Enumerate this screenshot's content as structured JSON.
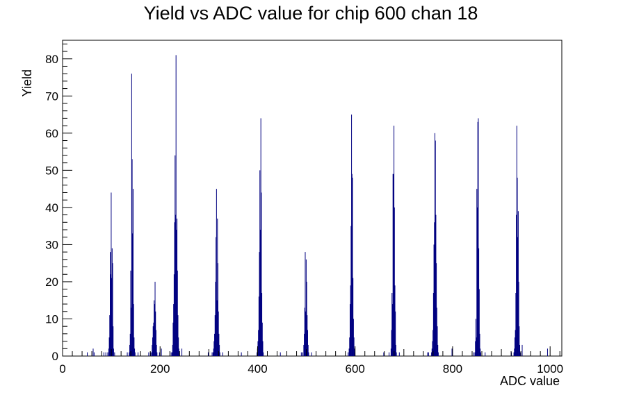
{
  "chart_data": {
    "type": "histogram",
    "title": "Yield vs ADC value for chip 600 chan 18",
    "xlabel": "ADC value",
    "ylabel": "Yield",
    "xlim": [
      0,
      1024
    ],
    "ylim": [
      0,
      85
    ],
    "x_ticks": [
      0,
      200,
      400,
      600,
      800,
      1000
    ],
    "y_ticks": [
      0,
      10,
      20,
      30,
      40,
      50,
      60,
      70,
      80
    ],
    "grid": false,
    "legend": "none",
    "line_color": "#000080",
    "bins": [
      [
        50,
        1
      ],
      [
        62,
        2
      ],
      [
        64,
        1
      ],
      [
        84,
        1
      ],
      [
        88,
        1
      ],
      [
        92,
        1
      ],
      [
        94,
        2
      ],
      [
        95,
        5
      ],
      [
        96,
        11
      ],
      [
        97,
        28
      ],
      [
        98,
        22
      ],
      [
        99,
        44
      ],
      [
        100,
        21
      ],
      [
        101,
        29
      ],
      [
        102,
        25
      ],
      [
        103,
        8
      ],
      [
        104,
        2
      ],
      [
        106,
        1
      ],
      [
        132,
        1
      ],
      [
        136,
        1
      ],
      [
        137,
        3
      ],
      [
        138,
        6
      ],
      [
        139,
        23
      ],
      [
        140,
        13
      ],
      [
        141,
        76
      ],
      [
        142,
        53
      ],
      [
        143,
        33
      ],
      [
        144,
        45
      ],
      [
        145,
        14
      ],
      [
        146,
        5
      ],
      [
        147,
        2
      ],
      [
        148,
        1
      ],
      [
        154,
        1
      ],
      [
        176,
        1
      ],
      [
        180,
        1
      ],
      [
        182,
        1
      ],
      [
        183,
        3
      ],
      [
        184,
        5
      ],
      [
        185,
        8
      ],
      [
        186,
        9
      ],
      [
        187,
        15
      ],
      [
        188,
        14
      ],
      [
        189,
        20
      ],
      [
        190,
        12
      ],
      [
        191,
        7
      ],
      [
        192,
        3
      ],
      [
        193,
        1
      ],
      [
        198,
        1
      ],
      [
        202,
        2
      ],
      [
        222,
        1
      ],
      [
        224,
        1
      ],
      [
        225,
        3
      ],
      [
        226,
        9
      ],
      [
        227,
        14
      ],
      [
        228,
        22
      ],
      [
        229,
        36
      ],
      [
        230,
        54
      ],
      [
        231,
        38
      ],
      [
        232,
        81
      ],
      [
        233,
        34
      ],
      [
        234,
        37
      ],
      [
        235,
        23
      ],
      [
        236,
        11
      ],
      [
        237,
        5
      ],
      [
        238,
        2
      ],
      [
        239,
        1
      ],
      [
        244,
        2
      ],
      [
        298,
        1
      ],
      [
        306,
        1
      ],
      [
        308,
        1
      ],
      [
        309,
        2
      ],
      [
        310,
        4
      ],
      [
        311,
        6
      ],
      [
        312,
        11
      ],
      [
        313,
        20
      ],
      [
        314,
        32
      ],
      [
        315,
        45
      ],
      [
        316,
        15
      ],
      [
        317,
        37
      ],
      [
        318,
        25
      ],
      [
        319,
        12
      ],
      [
        320,
        6
      ],
      [
        321,
        3
      ],
      [
        322,
        1
      ],
      [
        328,
        1
      ],
      [
        366,
        1
      ],
      [
        398,
        1
      ],
      [
        399,
        2
      ],
      [
        400,
        4
      ],
      [
        401,
        7
      ],
      [
        402,
        16
      ],
      [
        403,
        28
      ],
      [
        404,
        50
      ],
      [
        405,
        34
      ],
      [
        406,
        64
      ],
      [
        407,
        44
      ],
      [
        408,
        17
      ],
      [
        409,
        9
      ],
      [
        410,
        4
      ],
      [
        411,
        1
      ],
      [
        446,
        1
      ],
      [
        489,
        1
      ],
      [
        492,
        1
      ],
      [
        494,
        3
      ],
      [
        495,
        6
      ],
      [
        496,
        13
      ],
      [
        497,
        28
      ],
      [
        498,
        12
      ],
      [
        499,
        26
      ],
      [
        500,
        20
      ],
      [
        501,
        11
      ],
      [
        502,
        7
      ],
      [
        503,
        3
      ],
      [
        504,
        1
      ],
      [
        510,
        1
      ],
      [
        585,
        1
      ],
      [
        587,
        2
      ],
      [
        588,
        5
      ],
      [
        589,
        14
      ],
      [
        590,
        19
      ],
      [
        591,
        35
      ],
      [
        592,
        65
      ],
      [
        593,
        49
      ],
      [
        594,
        48
      ],
      [
        595,
        21
      ],
      [
        596,
        10
      ],
      [
        597,
        5
      ],
      [
        598,
        2
      ],
      [
        599,
        1
      ],
      [
        658,
        1
      ],
      [
        669,
        1
      ],
      [
        673,
        2
      ],
      [
        674,
        7
      ],
      [
        675,
        17
      ],
      [
        676,
        14
      ],
      [
        677,
        49
      ],
      [
        678,
        49
      ],
      [
        679,
        62
      ],
      [
        680,
        40
      ],
      [
        681,
        19
      ],
      [
        682,
        12
      ],
      [
        683,
        3
      ],
      [
        684,
        1
      ],
      [
        690,
        1
      ],
      [
        748,
        1
      ],
      [
        750,
        1
      ],
      [
        756,
        1
      ],
      [
        757,
        2
      ],
      [
        758,
        4
      ],
      [
        759,
        7
      ],
      [
        760,
        17
      ],
      [
        761,
        30
      ],
      [
        762,
        36
      ],
      [
        763,
        60
      ],
      [
        764,
        58
      ],
      [
        765,
        38
      ],
      [
        766,
        25
      ],
      [
        767,
        13
      ],
      [
        768,
        8
      ],
      [
        769,
        3
      ],
      [
        770,
        1
      ],
      [
        798,
        2
      ],
      [
        842,
        1
      ],
      [
        845,
        1
      ],
      [
        846,
        4
      ],
      [
        847,
        10
      ],
      [
        848,
        5
      ],
      [
        849,
        45
      ],
      [
        850,
        40
      ],
      [
        851,
        63
      ],
      [
        852,
        64
      ],
      [
        853,
        29
      ],
      [
        854,
        18
      ],
      [
        855,
        6
      ],
      [
        856,
        2
      ],
      [
        857,
        1
      ],
      [
        866,
        1
      ],
      [
        920,
        1
      ],
      [
        925,
        1
      ],
      [
        926,
        2
      ],
      [
        927,
        5
      ],
      [
        928,
        7
      ],
      [
        929,
        17
      ],
      [
        930,
        38
      ],
      [
        931,
        62
      ],
      [
        932,
        48
      ],
      [
        933,
        32
      ],
      [
        934,
        39
      ],
      [
        935,
        20
      ],
      [
        936,
        8
      ],
      [
        937,
        3
      ],
      [
        938,
        1
      ],
      [
        942,
        3
      ],
      [
        994,
        2
      ]
    ]
  }
}
